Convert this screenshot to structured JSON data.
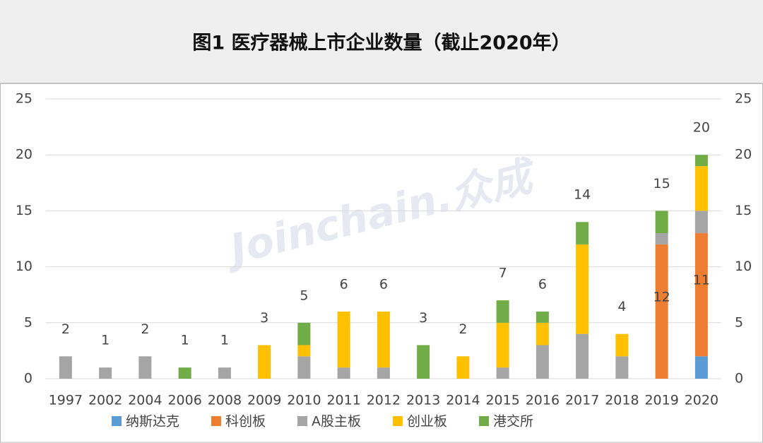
{
  "chart_data": {
    "type": "stacked_bar",
    "title": "图1 医疗器械上市企业数量（截止2020年）",
    "watermark": "Joinchain.众成",
    "categories": [
      "1997",
      "2002",
      "2004",
      "2006",
      "2008",
      "2009",
      "2010",
      "2011",
      "2012",
      "2013",
      "2014",
      "2015",
      "2016",
      "2017",
      "2018",
      "2019",
      "2020"
    ],
    "series": [
      {
        "name": "纳斯达克",
        "color": "#5b9bd5",
        "values": [
          0,
          0,
          0,
          0,
          0,
          0,
          0,
          0,
          0,
          0,
          0,
          0,
          0,
          0,
          0,
          0,
          2
        ]
      },
      {
        "name": "科创板",
        "color": "#ed7d31",
        "values": [
          0,
          0,
          0,
          0,
          0,
          0,
          0,
          0,
          0,
          0,
          0,
          0,
          0,
          0,
          0,
          12,
          11
        ],
        "value_labels": [
          null,
          null,
          null,
          null,
          null,
          null,
          null,
          null,
          null,
          null,
          null,
          null,
          null,
          null,
          null,
          "12",
          "11"
        ]
      },
      {
        "name": "A股主板",
        "color": "#a5a5a5",
        "values": [
          2,
          1,
          2,
          0,
          1,
          0,
          2,
          1,
          1,
          0,
          0,
          1,
          3,
          4,
          2,
          1,
          2
        ]
      },
      {
        "name": "创业板",
        "color": "#ffc000",
        "values": [
          0,
          0,
          0,
          0,
          0,
          3,
          1,
          5,
          5,
          0,
          2,
          4,
          2,
          8,
          2,
          0,
          4
        ]
      },
      {
        "name": "港交所",
        "color": "#70ad47",
        "values": [
          0,
          0,
          0,
          1,
          0,
          0,
          2,
          0,
          0,
          3,
          0,
          2,
          1,
          2,
          0,
          2,
          1
        ]
      }
    ],
    "totals": [
      2,
      1,
      2,
      1,
      1,
      3,
      5,
      6,
      6,
      3,
      2,
      7,
      6,
      14,
      4,
      15,
      20
    ],
    "ylim": [
      0,
      25
    ],
    "yticks": [
      0,
      5,
      10,
      15,
      20,
      25
    ],
    "y2ticks": [
      0,
      5,
      10,
      15,
      20,
      25
    ],
    "grid": true
  }
}
